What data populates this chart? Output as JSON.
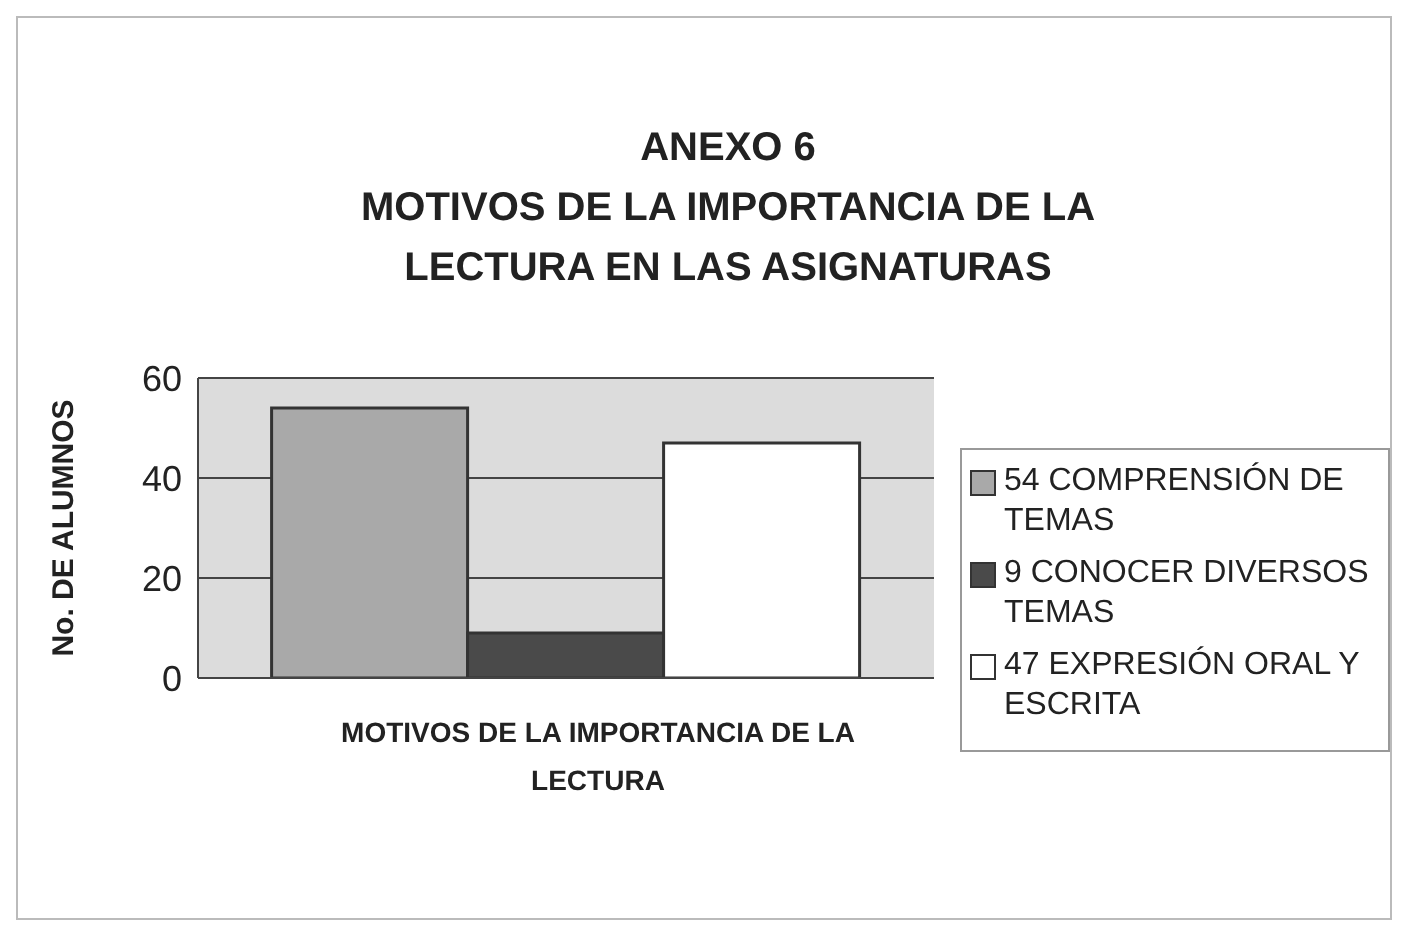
{
  "chart_data": {
    "type": "bar",
    "title": "ANEXO 6",
    "subtitle": "MOTIVOS DE LA IMPORTANCIA DE LA LECTURA EN LAS ASIGNATURAS",
    "xlabel": "MOTIVOS DE LA IMPORTANCIA DE LA LECTURA",
    "ylabel": "No. DE ALUMNOS",
    "categories": [
      null
    ],
    "series": [
      {
        "name": "54 COMPRENSIÓN DE TEMAS",
        "color": "#a9a9a9",
        "values": [
          54
        ]
      },
      {
        "name": "9 CONOCER DIVERSOS TEMAS",
        "color": "#4a4a4a",
        "values": [
          9
        ]
      },
      {
        "name": "47 EXPRESIÓN ORAL Y ESCRITA",
        "color": "#ffffff",
        "values": [
          47
        ]
      }
    ],
    "ylim": [
      0,
      60
    ],
    "yticks": [
      0,
      20,
      40,
      60
    ],
    "grid": "y",
    "legend": "right"
  }
}
